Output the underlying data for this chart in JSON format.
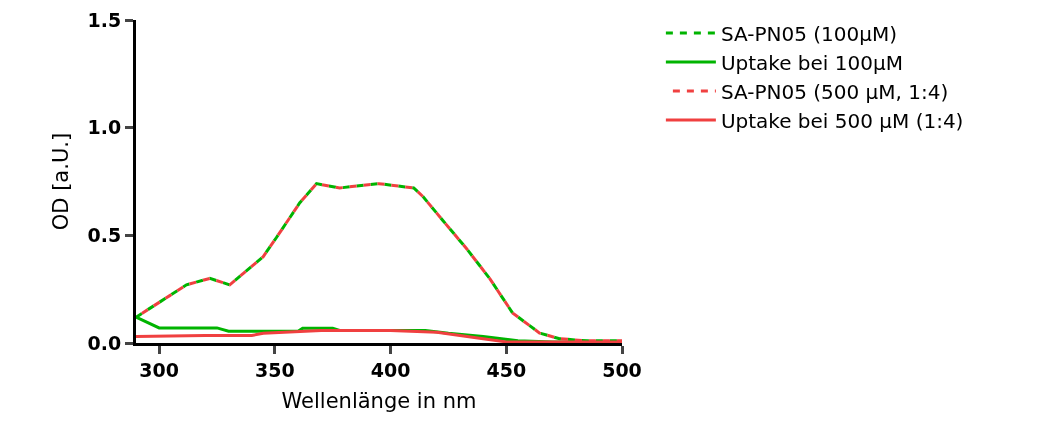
{
  "chart_data": {
    "type": "line",
    "xlabel": "Wellenlänge in nm",
    "ylabel": "OD [a.U.]",
    "xlim": [
      290,
      500
    ],
    "xticks": [
      300,
      350,
      400,
      450,
      500
    ],
    "ylim": [
      0,
      1.5
    ],
    "yticks": [
      {
        "value": 0,
        "label": "0.0"
      },
      {
        "value": 0.5,
        "label": "0.5"
      },
      {
        "value": 1,
        "label": "1.0"
      },
      {
        "value": 1.5,
        "label": "1.5"
      }
    ],
    "grid": false,
    "legend": "top right",
    "marker": "none",
    "series": [
      {
        "name": "SA-PN05 (100µM)",
        "color": "#00b400",
        "line_style": "dashed",
        "x": [
          290,
          304.6,
          311.8,
          321.9,
          330.5,
          344.9,
          350.7,
          360.7,
          368,
          378,
          395,
          410,
          414,
          422.5,
          432.7,
          442.8,
          452.7,
          464.4,
          473,
          485,
          500
        ],
        "values": [
          0.12,
          0.22,
          0.27,
          0.3,
          0.27,
          0.4,
          0.49,
          0.65,
          0.74,
          0.72,
          0.74,
          0.72,
          0.68,
          0.57,
          0.44,
          0.3,
          0.14,
          0.046,
          0.02,
          0.01,
          0.01
        ]
      },
      {
        "name": "Uptake bei 100µM",
        "color": "#00b400",
        "line_style": "solid",
        "x": [
          290,
          300,
          325,
          330,
          360,
          362,
          375,
          378,
          415,
          425,
          440,
          455,
          470,
          500
        ],
        "values": [
          0.12,
          0.07,
          0.07,
          0.055,
          0.055,
          0.068,
          0.068,
          0.058,
          0.058,
          0.045,
          0.03,
          0.01,
          0.005,
          0.005
        ]
      },
      {
        "name": "SA-PN05 (500 µM, 1:4)",
        "color": "#f04040",
        "line_style": "dashed",
        "x": [
          290,
          304.6,
          311.8,
          321.9,
          330.5,
          344.9,
          350.7,
          360.7,
          368,
          378,
          395,
          410,
          414,
          422.5,
          432.7,
          442.8,
          452.7,
          464.4,
          473,
          485,
          500
        ],
        "values": [
          0.12,
          0.22,
          0.27,
          0.3,
          0.27,
          0.4,
          0.49,
          0.65,
          0.74,
          0.72,
          0.74,
          0.72,
          0.68,
          0.57,
          0.44,
          0.3,
          0.14,
          0.046,
          0.02,
          0.01,
          0.01
        ]
      },
      {
        "name": "Uptake bei 500 µM (1:4)",
        "color": "#f04040",
        "line_style": "solid",
        "x": [
          290,
          320,
          340,
          345,
          370,
          400,
          420,
          440,
          450,
          500
        ],
        "values": [
          0.03,
          0.035,
          0.035,
          0.045,
          0.058,
          0.058,
          0.05,
          0.02,
          0.005,
          0.005
        ]
      }
    ]
  }
}
